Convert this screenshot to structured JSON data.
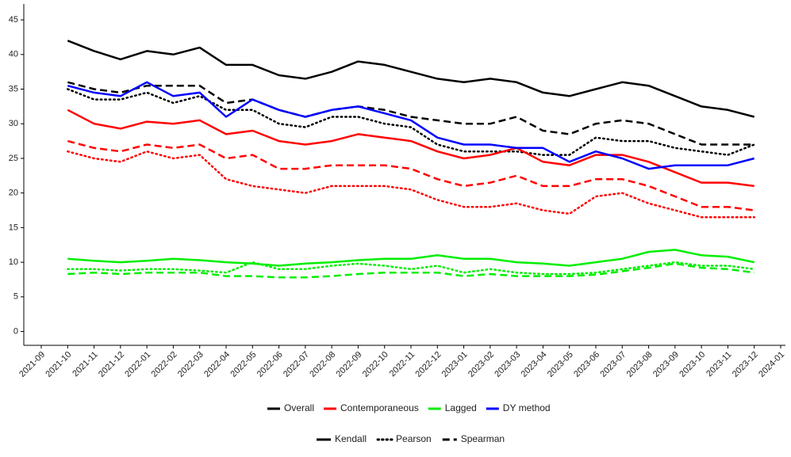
{
  "chart_data": {
    "type": "line",
    "xticks": [
      "2021-09",
      "2021-10",
      "2021-11",
      "2021-12",
      "2022-01",
      "2022-02",
      "2022-03",
      "2022-04",
      "2022-05",
      "2022-06",
      "2022-07",
      "2022-08",
      "2022-09",
      "2022-10",
      "2022-11",
      "2022-12",
      "2023-01",
      "2023-02",
      "2023-03",
      "2023-04",
      "2023-05",
      "2023-06",
      "2023-07",
      "2023-08",
      "2023-09",
      "2023-10",
      "2023-11",
      "2023-12",
      "2024-01"
    ],
    "x": [
      "2021-10",
      "2021-11",
      "2021-12",
      "2022-01",
      "2022-02",
      "2022-03",
      "2022-04",
      "2022-05",
      "2022-06",
      "2022-07",
      "2022-08",
      "2022-09",
      "2022-10",
      "2022-11",
      "2022-12",
      "2023-01",
      "2023-02",
      "2023-03",
      "2023-04",
      "2023-05",
      "2023-06",
      "2023-07",
      "2023-08",
      "2023-09",
      "2023-10",
      "2023-11",
      "2023-12"
    ],
    "ylim": [
      -2,
      47.3
    ],
    "yticks": [
      0,
      5,
      10,
      15,
      20,
      25,
      30,
      35,
      40,
      45
    ],
    "color_legend": [
      {
        "name": "Overall",
        "color": "#000000"
      },
      {
        "name": "Contemporaneous",
        "color": "#ff0000"
      },
      {
        "name": "Lagged",
        "color": "#00ee00"
      },
      {
        "name": "DY method",
        "color": "#0000ff"
      }
    ],
    "linetype_legend": [
      {
        "name": "Kendall",
        "dash": "solid"
      },
      {
        "name": "Pearson",
        "dash": "dotted"
      },
      {
        "name": "Spearman",
        "dash": "dashed"
      }
    ],
    "series": [
      {
        "group": "Overall",
        "linetype": "Kendall",
        "values": [
          42,
          40.5,
          39.3,
          40.5,
          40,
          41,
          38.5,
          38.5,
          37,
          36.5,
          37.5,
          39,
          38.5,
          37.5,
          36.5,
          36,
          36.5,
          36,
          34.5,
          34,
          35,
          36,
          35.5,
          34,
          32.5,
          32,
          31
        ]
      },
      {
        "group": "Overall",
        "linetype": "Spearman",
        "values": [
          36,
          35,
          34.5,
          35.5,
          35.5,
          35.5,
          33,
          33.5,
          32,
          31,
          32,
          32.5,
          32,
          31,
          30.5,
          30,
          30,
          31,
          29,
          28.5,
          30,
          30.5,
          30,
          28.5,
          27,
          27,
          27
        ]
      },
      {
        "group": "Overall",
        "linetype": "Pearson",
        "values": [
          35,
          33.5,
          33.5,
          34.5,
          33,
          34,
          32,
          32,
          30,
          29.5,
          31,
          31,
          30,
          29.5,
          27,
          26,
          26,
          26,
          25.5,
          25.5,
          28,
          27.5,
          27.5,
          26.5,
          26,
          25.5,
          27
        ]
      },
      {
        "group": "Contemporaneous",
        "linetype": "Kendall",
        "values": [
          32,
          30,
          29.3,
          30.3,
          30,
          30.5,
          28.5,
          29,
          27.5,
          27,
          27.5,
          28.5,
          28,
          27.5,
          26,
          25,
          25.5,
          26.5,
          24.5,
          24,
          25.5,
          25.5,
          24.5,
          23,
          21.5,
          21.5,
          21
        ]
      },
      {
        "group": "Contemporaneous",
        "linetype": "Spearman",
        "values": [
          27.5,
          26.5,
          26,
          27,
          26.5,
          27,
          25,
          25.5,
          23.5,
          23.5,
          24,
          24,
          24,
          23.5,
          22,
          21,
          21.5,
          22.5,
          21,
          21,
          22,
          22,
          21,
          19.5,
          18,
          18,
          17.5
        ]
      },
      {
        "group": "Contemporaneous",
        "linetype": "Pearson",
        "values": [
          26,
          25,
          24.5,
          26,
          25,
          25.5,
          22,
          21,
          20.5,
          20,
          21,
          21,
          21,
          20.5,
          19,
          18,
          18,
          18.5,
          17.5,
          17,
          19.5,
          20,
          18.5,
          17.5,
          16.5,
          16.5,
          16.5
        ]
      },
      {
        "group": "Lagged",
        "linetype": "Kendall",
        "values": [
          10.5,
          10.2,
          10,
          10.2,
          10.5,
          10.3,
          10,
          9.8,
          9.5,
          9.8,
          10,
          10.3,
          10.5,
          10.5,
          11,
          10.5,
          10.5,
          10,
          9.8,
          9.5,
          10,
          10.5,
          11.5,
          11.8,
          11,
          10.8,
          10
        ]
      },
      {
        "group": "Lagged",
        "linetype": "Spearman",
        "values": [
          8.3,
          8.5,
          8.3,
          8.5,
          8.5,
          8.5,
          8,
          8,
          7.8,
          7.8,
          8,
          8.3,
          8.5,
          8.5,
          8.5,
          8,
          8.3,
          8,
          8,
          8,
          8.2,
          8.7,
          9.2,
          9.8,
          9.2,
          9,
          8.5
        ]
      },
      {
        "group": "Lagged",
        "linetype": "Pearson",
        "values": [
          9,
          9,
          8.8,
          9,
          9,
          8.8,
          8.5,
          10,
          9,
          9,
          9.5,
          9.8,
          9.5,
          9,
          9.5,
          8.5,
          9,
          8.5,
          8.3,
          8.3,
          8.5,
          9,
          9.5,
          10,
          9.5,
          9.5,
          9
        ]
      },
      {
        "group": "DY method",
        "linetype": "Kendall",
        "values": [
          35.5,
          34.5,
          34,
          36,
          34,
          34.5,
          31,
          33.5,
          32,
          31,
          32,
          32.5,
          31.5,
          30.5,
          28,
          27,
          27,
          26.5,
          26.5,
          24.5,
          26,
          25,
          23.5,
          24,
          24,
          24,
          25
        ]
      }
    ]
  }
}
